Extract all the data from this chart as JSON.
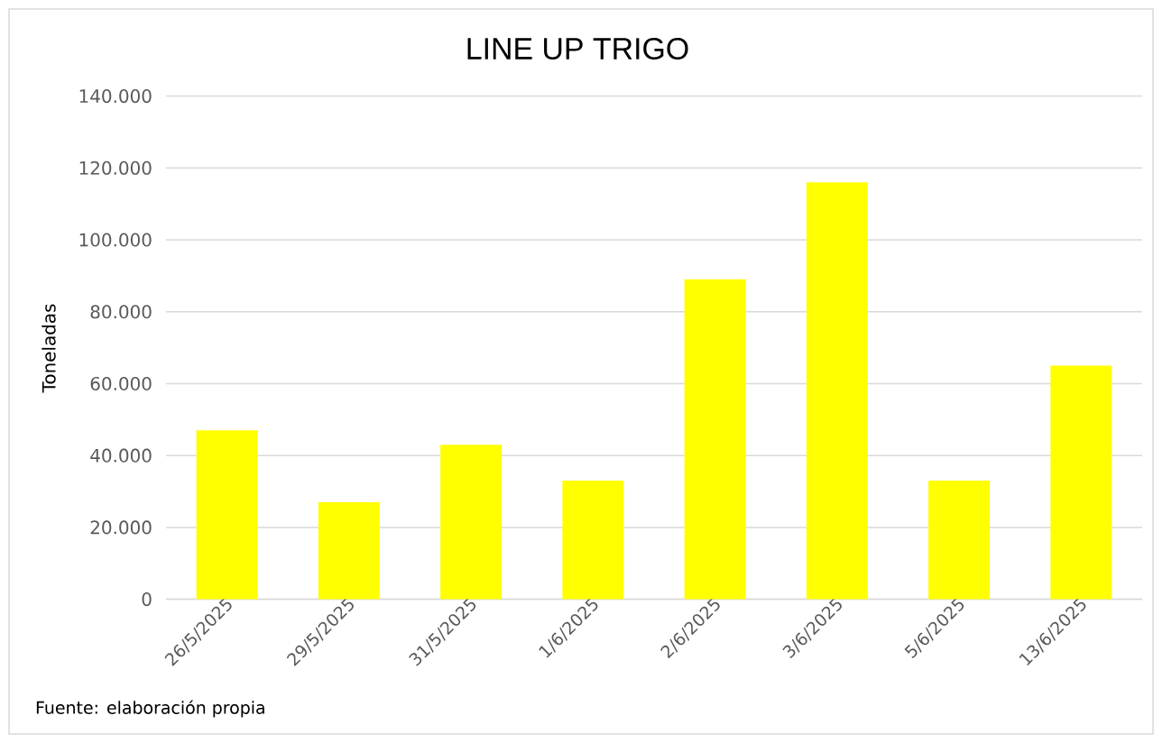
{
  "chart_data": {
    "type": "bar",
    "title": "LINE UP TRIGO",
    "ylabel": "Toneladas",
    "categories": [
      "26/5/2025",
      "29/5/2025",
      "31/5/2025",
      "1/6/2025",
      "2/6/2025",
      "3/6/2025",
      "5/6/2025",
      "13/6/2025"
    ],
    "values": [
      47000,
      27000,
      43000,
      33000,
      89000,
      116000,
      33000,
      65000
    ],
    "color": "#ffff00",
    "ylim": [
      0,
      140000
    ],
    "yticks": [
      0,
      {
        "value": 20000,
        "label": "20.000"
      },
      {
        "value": 40000,
        "label": "40.000"
      },
      {
        "value": 60000,
        "label": "60.000"
      },
      {
        "value": 80000,
        "label": "80.000"
      },
      {
        "value": 100000,
        "label": "100.000"
      },
      {
        "value": 120000,
        "label": "120.000"
      },
      {
        "value": 140000,
        "label": "140.000"
      }
    ],
    "grid": "y",
    "annotations": [
      "Fuente: elaboración propia"
    ]
  }
}
